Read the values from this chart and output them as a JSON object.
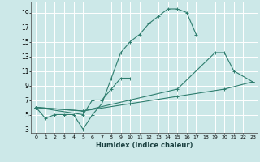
{
  "xlabel": "Humidex (Indice chaleur)",
  "bg_color": "#cce8e8",
  "grid_color": "#ffffff",
  "line_color": "#2e7d6e",
  "xlim": [
    -0.5,
    23.5
  ],
  "ylim": [
    2.5,
    20.5
  ],
  "xticks": [
    0,
    1,
    2,
    3,
    4,
    5,
    6,
    7,
    8,
    9,
    10,
    11,
    12,
    13,
    14,
    15,
    16,
    17,
    18,
    19,
    20,
    21,
    22,
    23
  ],
  "yticks": [
    3,
    5,
    7,
    9,
    11,
    13,
    15,
    17,
    19
  ],
  "s1x": [
    0,
    1,
    2,
    3,
    4,
    5,
    6,
    7,
    8,
    9,
    10,
    11,
    12,
    13,
    14,
    15,
    16,
    17
  ],
  "s1y": [
    6,
    4.5,
    5,
    5,
    5,
    3,
    5,
    6.5,
    10,
    13.5,
    15,
    16,
    17.5,
    18.5,
    19.5,
    19.5,
    19,
    16
  ],
  "s2x": [
    0,
    5,
    6,
    7,
    8,
    9,
    10
  ],
  "s2y": [
    6,
    5,
    7,
    7,
    8.5,
    10,
    10
  ],
  "s3x": [
    0,
    5,
    10,
    15,
    20,
    23
  ],
  "s3y": [
    6,
    5.5,
    6.5,
    7.5,
    8.5,
    9.5
  ],
  "s4x": [
    0,
    5,
    10,
    15,
    19,
    20,
    21,
    23
  ],
  "s4y": [
    6,
    5.5,
    7,
    8.5,
    13.5,
    13.5,
    11,
    9.5
  ]
}
